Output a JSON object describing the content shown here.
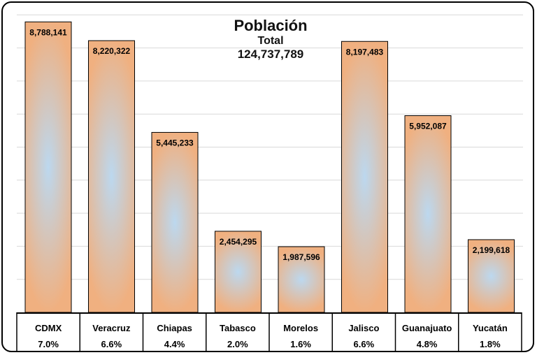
{
  "chart_data": {
    "type": "bar",
    "title": "Población",
    "subtitle": "Total",
    "total": "124,737,789",
    "categories": [
      "CDMX",
      "Veracruz",
      "Chiapas",
      "Tabasco",
      "Morelos",
      "Jalisco",
      "Guanajuato",
      "Yucatán"
    ],
    "values": [
      8788141,
      8220322,
      5445233,
      2454295,
      1987596,
      8197483,
      5952087,
      2199618
    ],
    "value_labels": [
      "8,788,141",
      "8,220,322",
      "5,445,233",
      "2,454,295",
      "1,987,596",
      "8,197,483",
      "5,952,087",
      "2,199,618"
    ],
    "percentages": [
      "7.0%",
      "6.6%",
      "4.4%",
      "2.0%",
      "1.6%",
      "6.6%",
      "4.8%",
      "1.8%"
    ],
    "ylim": [
      0,
      9000000
    ],
    "grid": true,
    "colors": {
      "bar_edge": "#f0b080",
      "bar_center": "#bcd8ef",
      "bar_border": "#000000",
      "grid": "#d9d9d9"
    }
  }
}
